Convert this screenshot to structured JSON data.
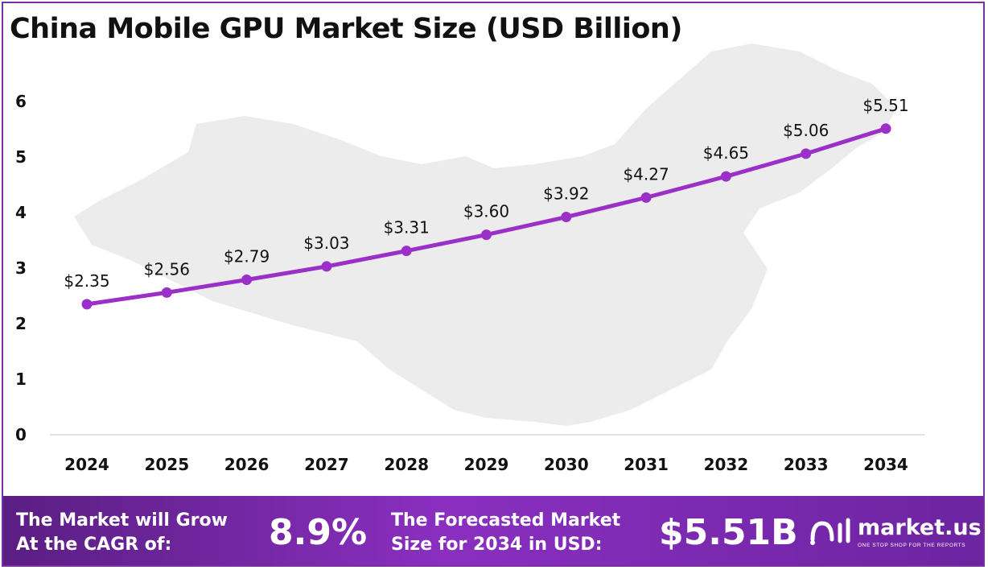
{
  "title": "China Mobile GPU Market Size (USD Billion)",
  "chart_data": {
    "type": "line",
    "categories": [
      "2024",
      "2025",
      "2026",
      "2027",
      "2028",
      "2029",
      "2030",
      "2031",
      "2032",
      "2033",
      "2034"
    ],
    "values": [
      2.35,
      2.56,
      2.79,
      3.03,
      3.31,
      3.6,
      3.92,
      4.27,
      4.65,
      5.06,
      5.51
    ],
    "data_labels": [
      "$2.35",
      "$2.56",
      "$2.79",
      "$3.03",
      "$3.31",
      "$3.60",
      "$3.92",
      "$4.27",
      "$4.65",
      "$5.06",
      "$5.51"
    ],
    "yticks": [
      "0",
      "1",
      "2",
      "3",
      "4",
      "5",
      "6"
    ],
    "ylim": [
      0,
      6
    ],
    "grid": false,
    "legend": "none",
    "line_color": "#9b30c8",
    "xlabel": "",
    "ylabel": ""
  },
  "footer": {
    "cagr_label_line1": "The Market will Grow",
    "cagr_label_line2": "At the CAGR of:",
    "cagr_value": "8.9%",
    "forecast_label_line1": "The Forecasted Market",
    "forecast_label_line2": "Size for 2034 in USD:",
    "forecast_value": "$5.51B",
    "brand_name": "market.us",
    "brand_tagline": "ONE STOP SHOP FOR THE REPORTS",
    "colors": {
      "footer_start": "#5a1e82",
      "footer_mid": "#8a2fc0"
    }
  }
}
